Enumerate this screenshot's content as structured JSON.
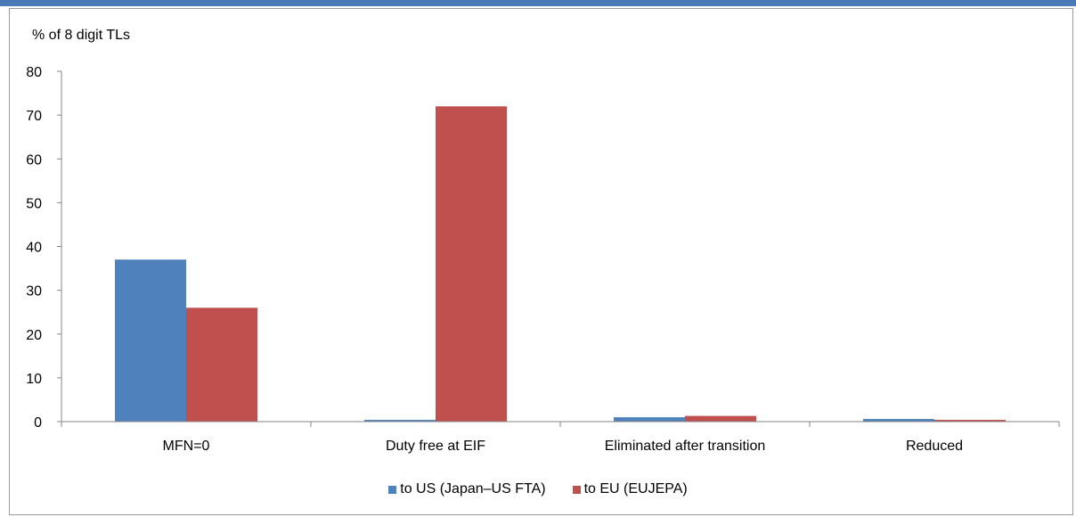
{
  "colors": {
    "series_us": "#4f81bd",
    "series_eu": "#c0504d",
    "top_bar": "#4a7ab5"
  },
  "chart_data": {
    "type": "bar",
    "ylabel": "% of 8 digit TLs",
    "ylim": [
      0,
      80
    ],
    "yticks": [
      "0",
      "10",
      "20",
      "30",
      "40",
      "50",
      "60",
      "70",
      "80"
    ],
    "categories": [
      "MFN=0",
      "Duty free at EIF",
      "Eliminated after transition",
      "Reduced"
    ],
    "series": [
      {
        "name": "to US (Japan–US FTA)",
        "values": [
          37,
          0.4,
          1.0,
          0.6
        ]
      },
      {
        "name": "to EU (EUJEPA)",
        "values": [
          26,
          72,
          1.3,
          0.4
        ]
      }
    ],
    "legend": "bottom",
    "grid": false
  }
}
